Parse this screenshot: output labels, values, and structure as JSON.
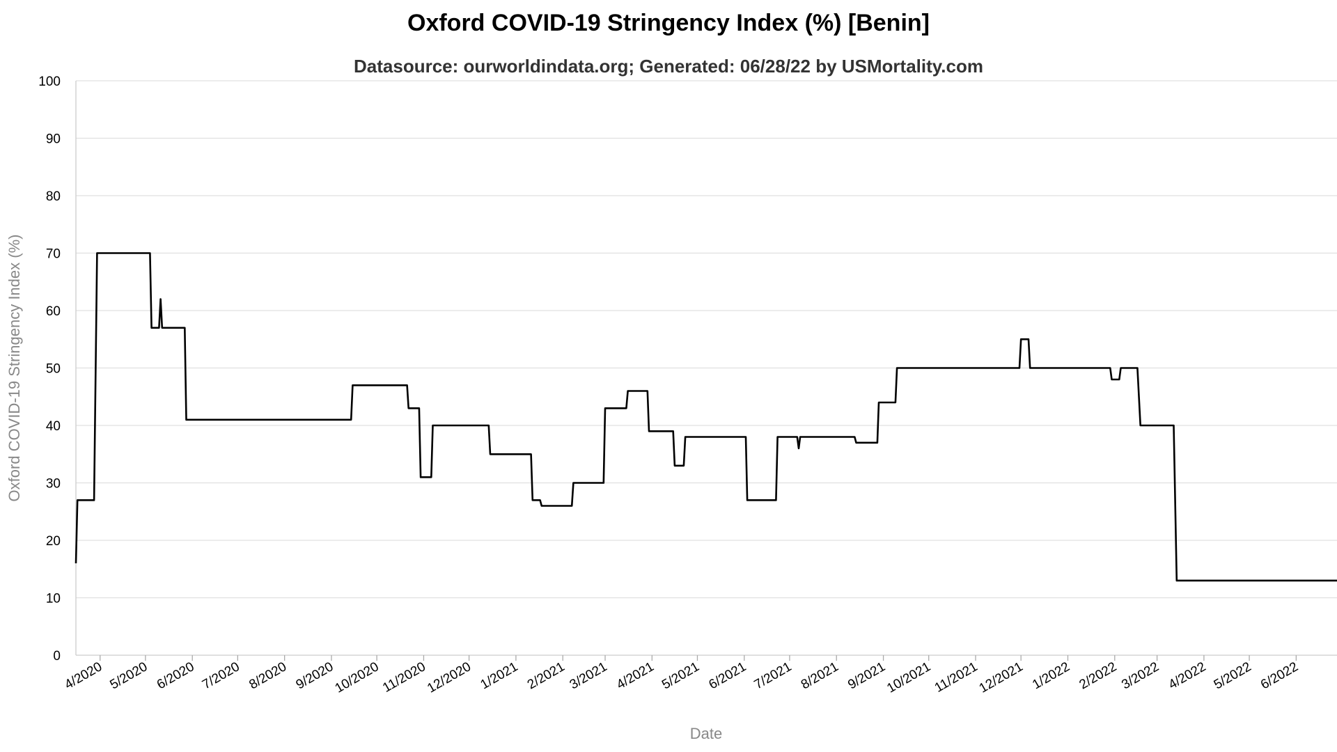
{
  "chart_data": {
    "type": "line",
    "title": "Oxford COVID-19 Stringency Index (%) [Benin]",
    "subtitle": "Datasource: ourworldindata.org; Generated: 06/28/22 by USMortality.com",
    "xlabel": "Date",
    "ylabel": "Oxford COVID-19 Stringency Index (%)",
    "ylim": [
      0,
      100
    ],
    "yticks": [
      0,
      10,
      20,
      30,
      40,
      50,
      60,
      70,
      80,
      90,
      100
    ],
    "xlim": [
      "2020-03-16",
      "2022-06-28"
    ],
    "xticks": [
      {
        "date": "2020-04-01",
        "label": "4/2020"
      },
      {
        "date": "2020-05-01",
        "label": "5/2020"
      },
      {
        "date": "2020-06-01",
        "label": "6/2020"
      },
      {
        "date": "2020-07-01",
        "label": "7/2020"
      },
      {
        "date": "2020-08-01",
        "label": "8/2020"
      },
      {
        "date": "2020-09-01",
        "label": "9/2020"
      },
      {
        "date": "2020-10-01",
        "label": "10/2020"
      },
      {
        "date": "2020-11-01",
        "label": "11/2020"
      },
      {
        "date": "2020-12-01",
        "label": "12/2020"
      },
      {
        "date": "2021-01-01",
        "label": "1/2021"
      },
      {
        "date": "2021-02-01",
        "label": "2/2021"
      },
      {
        "date": "2021-03-01",
        "label": "3/2021"
      },
      {
        "date": "2021-04-01",
        "label": "4/2021"
      },
      {
        "date": "2021-05-01",
        "label": "5/2021"
      },
      {
        "date": "2021-06-01",
        "label": "6/2021"
      },
      {
        "date": "2021-07-01",
        "label": "7/2021"
      },
      {
        "date": "2021-08-01",
        "label": "8/2021"
      },
      {
        "date": "2021-09-01",
        "label": "9/2021"
      },
      {
        "date": "2021-10-01",
        "label": "10/2021"
      },
      {
        "date": "2021-11-01",
        "label": "11/2021"
      },
      {
        "date": "2021-12-01",
        "label": "12/2021"
      },
      {
        "date": "2022-01-01",
        "label": "1/2022"
      },
      {
        "date": "2022-02-01",
        "label": "2/2022"
      },
      {
        "date": "2022-03-01",
        "label": "3/2022"
      },
      {
        "date": "2022-04-01",
        "label": "4/2022"
      },
      {
        "date": "2022-05-01",
        "label": "5/2022"
      },
      {
        "date": "2022-06-01",
        "label": "6/2022"
      }
    ],
    "grid": true,
    "series": [
      {
        "color": "#000000",
        "points": [
          [
            "2020-03-16",
            16
          ],
          [
            "2020-03-17",
            27
          ],
          [
            "2020-03-28",
            27
          ],
          [
            "2020-03-30",
            70
          ],
          [
            "2020-05-04",
            70
          ],
          [
            "2020-05-05",
            57
          ],
          [
            "2020-05-10",
            57
          ],
          [
            "2020-05-11",
            62
          ],
          [
            "2020-05-12",
            57
          ],
          [
            "2020-05-27",
            57
          ],
          [
            "2020-05-28",
            41
          ],
          [
            "2020-09-14",
            41
          ],
          [
            "2020-09-15",
            47
          ],
          [
            "2020-10-21",
            47
          ],
          [
            "2020-10-22",
            43
          ],
          [
            "2020-10-29",
            43
          ],
          [
            "2020-10-30",
            31
          ],
          [
            "2020-11-06",
            31
          ],
          [
            "2020-11-07",
            40
          ],
          [
            "2020-12-14",
            40
          ],
          [
            "2020-12-15",
            35
          ],
          [
            "2021-01-11",
            35
          ],
          [
            "2021-01-12",
            27
          ],
          [
            "2021-01-17",
            27
          ],
          [
            "2021-01-18",
            26
          ],
          [
            "2021-02-07",
            26
          ],
          [
            "2021-02-08",
            30
          ],
          [
            "2021-02-28",
            30
          ],
          [
            "2021-03-01",
            43
          ],
          [
            "2021-03-15",
            43
          ],
          [
            "2021-03-16",
            46
          ],
          [
            "2021-03-29",
            46
          ],
          [
            "2021-03-30",
            39
          ],
          [
            "2021-04-15",
            39
          ],
          [
            "2021-04-16",
            33
          ],
          [
            "2021-04-22",
            33
          ],
          [
            "2021-04-23",
            38
          ],
          [
            "2021-06-02",
            38
          ],
          [
            "2021-06-03",
            27
          ],
          [
            "2021-06-22",
            27
          ],
          [
            "2021-06-23",
            38
          ],
          [
            "2021-07-06",
            38
          ],
          [
            "2021-07-07",
            36
          ],
          [
            "2021-07-08",
            38
          ],
          [
            "2021-08-13",
            38
          ],
          [
            "2021-08-14",
            37
          ],
          [
            "2021-08-28",
            37
          ],
          [
            "2021-08-29",
            44
          ],
          [
            "2021-09-09",
            44
          ],
          [
            "2021-09-10",
            50
          ],
          [
            "2021-11-30",
            50
          ],
          [
            "2021-12-01",
            55
          ],
          [
            "2021-12-06",
            55
          ],
          [
            "2021-12-07",
            50
          ],
          [
            "2022-01-29",
            50
          ],
          [
            "2022-01-30",
            48
          ],
          [
            "2022-02-04",
            48
          ],
          [
            "2022-02-05",
            50
          ],
          [
            "2022-02-16",
            50
          ],
          [
            "2022-02-18",
            40
          ],
          [
            "2022-03-12",
            40
          ],
          [
            "2022-03-14",
            13
          ],
          [
            "2022-06-28",
            13
          ]
        ]
      }
    ]
  }
}
